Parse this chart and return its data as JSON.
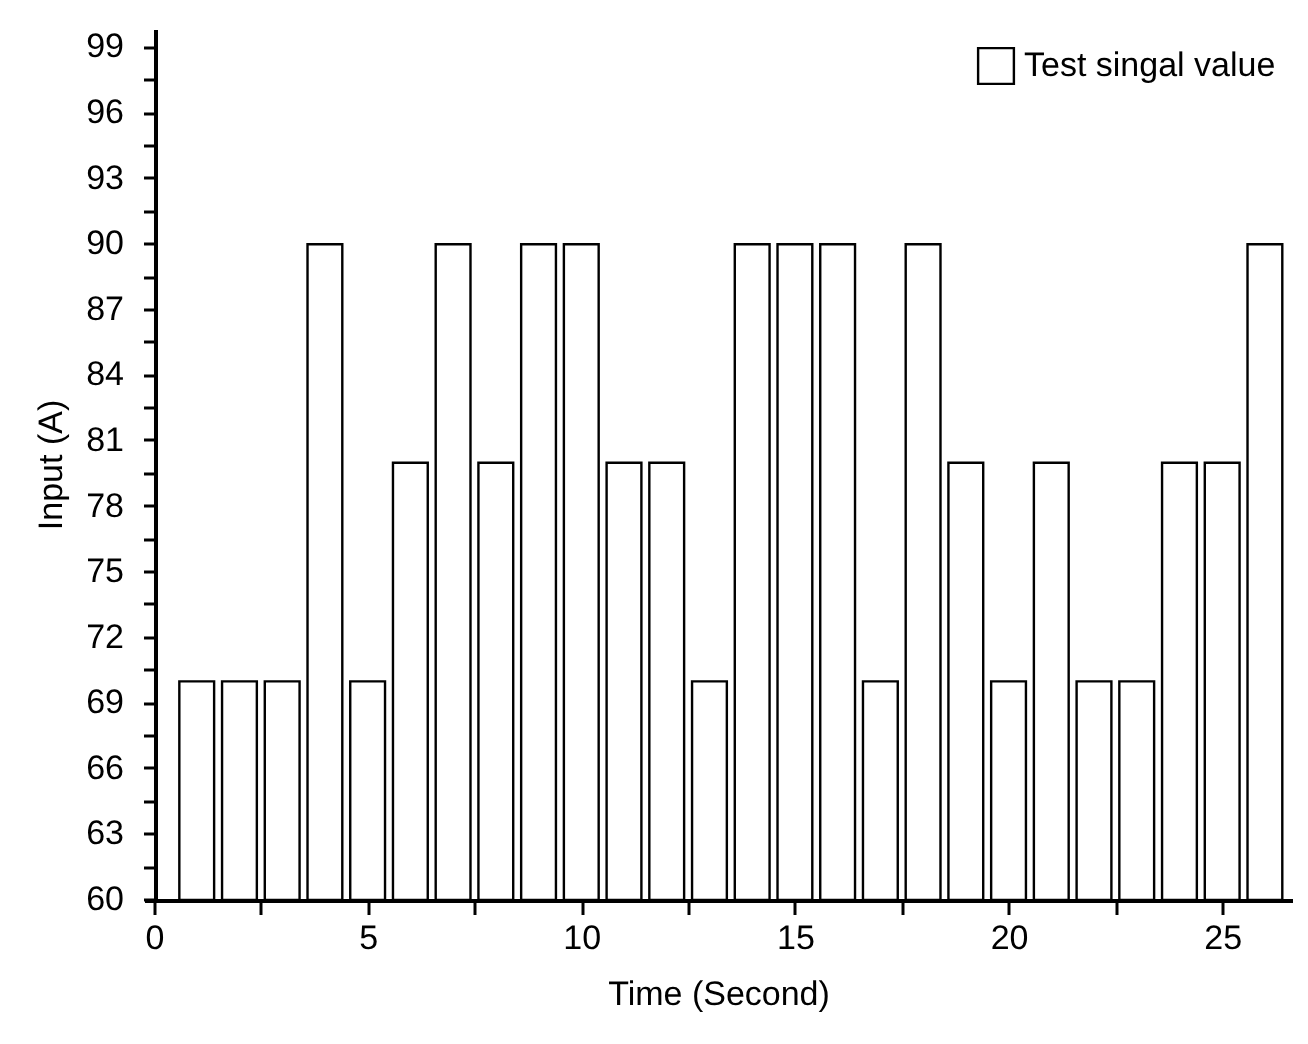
{
  "chart_data": {
    "type": "bar",
    "xlabel": "Time (Second)",
    "ylabel": "Input (A)",
    "x": [
      1,
      2,
      3,
      4,
      5,
      6,
      7,
      8,
      9,
      10,
      11,
      12,
      13,
      14,
      15,
      16,
      17,
      18,
      19,
      20,
      21,
      22,
      23,
      24,
      25,
      26
    ],
    "series": [
      {
        "name": "Test singal value",
        "color": "#ffffff",
        "values": [
          70,
          70,
          70,
          90,
          70,
          80,
          90,
          80,
          90,
          90,
          80,
          80,
          70,
          90,
          90,
          90,
          70,
          90,
          80,
          70,
          80,
          70,
          70,
          80,
          80,
          90
        ]
      }
    ],
    "xlim": [
      0,
      26.4
    ],
    "xticks": [
      0,
      {
        "value": 2.5,
        "label": null
      },
      5,
      {
        "value": 7.5,
        "label": null
      },
      10,
      {
        "value": 12.5,
        "label": null
      },
      15,
      {
        "value": 17.5,
        "label": null
      },
      20,
      {
        "value": 22.5,
        "label": null
      },
      25
    ],
    "ylim": [
      60,
      99.8
    ],
    "yticks": [
      60,
      {
        "value": 61.5,
        "label": null
      },
      63,
      {
        "value": 64.5,
        "label": null
      },
      66,
      {
        "value": 67.5,
        "label": null
      },
      69,
      {
        "value": 70.5,
        "label": null
      },
      72,
      {
        "value": 73.5,
        "label": null
      },
      75,
      {
        "value": 76.5,
        "label": null
      },
      78,
      {
        "value": 79.5,
        "label": null
      },
      81,
      {
        "value": 82.5,
        "label": null
      },
      84,
      {
        "value": 85.5,
        "label": null
      },
      87,
      {
        "value": 88.5,
        "label": null
      },
      90,
      {
        "value": 91.5,
        "label": null
      },
      93,
      {
        "value": 94.5,
        "label": null
      },
      96,
      {
        "value": 97.5,
        "label": null
      },
      99
    ],
    "legend": "top right",
    "grid": false
  }
}
